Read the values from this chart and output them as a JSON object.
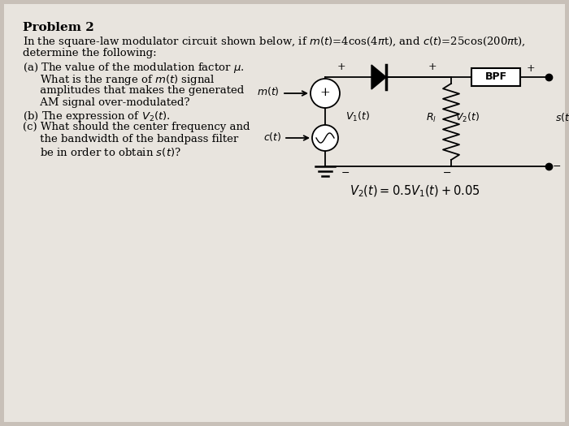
{
  "background_color": "#c8c0b8",
  "paper_color": "#e8e4de",
  "title": "Problem 2",
  "intro_line1": "In the square-law modulator circuit shown below, if $m(t)$=4cos(4$\\pi$t), and $c(t)$=25cos(200$\\pi$t),",
  "intro_line2": "determine the following:",
  "item_a1": "(a) The value of the modulation factor $\\mu$.",
  "item_a2": "     What is the range of $m(t)$ signal",
  "item_a3": "     amplitudes that makes the generated",
  "item_a4": "     AM signal over-modulated?",
  "item_b": "(b) The expression of $V_2(t)$.",
  "item_c1": "(c) What should the center frequency and",
  "item_c2": "     the bandwidth of the bandpass filter",
  "item_c3": "     be in order to obtain $s(t)$?",
  "equation": "$V_2(t) = 0.5V_1(t) + 0.05$",
  "label_mt": "$m(t)$",
  "label_ct": "$c(t)$",
  "label_V1": "$V_1(t)$",
  "label_Rl": "$R_l$",
  "label_V2": "$V_2(t)$",
  "label_st": "$s(t)$",
  "label_BPF": "BPF"
}
